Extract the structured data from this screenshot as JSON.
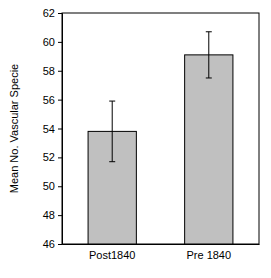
{
  "chart_data": {
    "type": "bar",
    "y_label": "Mean No. Vascular Specie",
    "categories": [
      "Post1840",
      "Pre 1840"
    ],
    "values": [
      53.8,
      59.1
    ],
    "errors": [
      2.1,
      1.6
    ],
    "color": "#c0c0c0",
    "ylim": [
      46,
      62
    ],
    "yticks": [
      46,
      48,
      50,
      52,
      54,
      56,
      58,
      60,
      62
    ]
  }
}
